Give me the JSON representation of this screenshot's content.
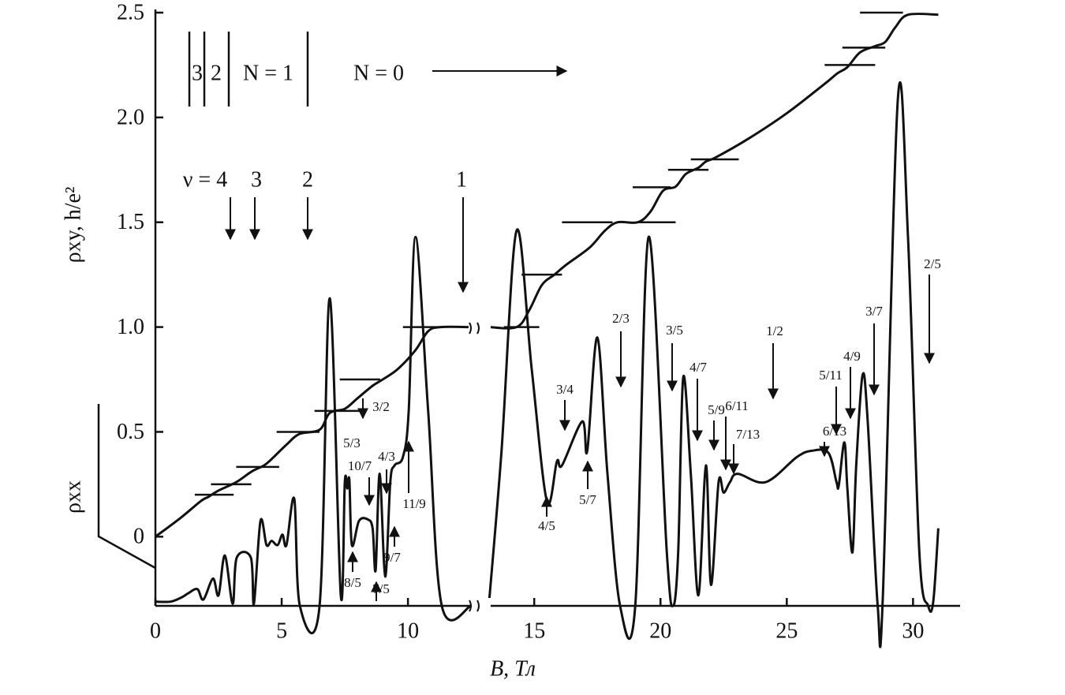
{
  "chart_data": {
    "type": "line",
    "xlabel": "B, Тл",
    "ylabel": "ρxy, h/e²",
    "y2label": "ρxx",
    "xlim": [
      0,
      31.8
    ],
    "xticks": [
      0,
      5,
      10,
      15,
      20,
      25,
      30
    ],
    "ylim": [
      -0.33,
      2.5
    ],
    "yticks": [
      0,
      0.5,
      {
        "value": 1.0,
        "label": "1.0"
      },
      1.5,
      {
        "value": 2.0,
        "label": "2.0"
      },
      2.5
    ],
    "grid": false,
    "series": [
      {
        "color": "#111111",
        "x": [
          0,
          1,
          1.8,
          2.1,
          2.5,
          3.2,
          3.8,
          4.3,
          4.6,
          5.2,
          5.7,
          6.5,
          6.9,
          7.5,
          8,
          8.6,
          9,
          9.6,
          10.3,
          10.8,
          11.3,
          12.4,
          null,
          13.2,
          14.3,
          14.8,
          15.3,
          15.8,
          16.3,
          17.2,
          17.8,
          18.3,
          19.1,
          19.6,
          20.1,
          20.6,
          21,
          21.5,
          21.8,
          22.2,
          23.5,
          25,
          26.5,
          27,
          27.4,
          27.9,
          28.5,
          28.9,
          29.3,
          29.8,
          31
        ],
        "values": [
          0,
          0.09,
          0.17,
          0.19,
          0.22,
          0.26,
          0.31,
          0.34,
          0.37,
          0.44,
          0.49,
          0.51,
          0.59,
          0.61,
          0.66,
          0.72,
          0.75,
          0.8,
          0.89,
          0.98,
          1.0,
          1.0,
          null,
          1.0,
          1.0,
          1.08,
          1.2,
          1.25,
          1.3,
          1.38,
          1.46,
          1.5,
          1.5,
          1.55,
          1.65,
          1.67,
          1.73,
          1.76,
          1.79,
          1.81,
          1.9,
          2.02,
          2.16,
          2.21,
          2.24,
          2.31,
          2.34,
          2.36,
          2.43,
          2.49,
          2.49
        ]
      },
      {
        "color": "#111111",
        "x": [
          0,
          0.6,
          1.03,
          1.3,
          1.66,
          1.9,
          2.28,
          2.5,
          2.75,
          3.06,
          3.22,
          3.78,
          3.9,
          4.16,
          4.4,
          4.6,
          4.84,
          5.03,
          5.19,
          5.5,
          5.72,
          6.5,
          6.9,
          7.34,
          7.5,
          7.6,
          7.68,
          7.78,
          8.06,
          8.4,
          8.6,
          8.72,
          8.88,
          9.1,
          9.3,
          9.47,
          9.8,
          10.03,
          10.3,
          10.8,
          11.34,
          12.5,
          null,
          13.2,
          13.7,
          14.3,
          14.9,
          15.5,
          15.9,
          16.1,
          16.9,
          17.1,
          17.5,
          17.9,
          18.4,
          19.0,
          19.53,
          20.25,
          20.5,
          20.7,
          20.9,
          21.2,
          21.5,
          21.8,
          22.0,
          22.3,
          22.5,
          22.75,
          23.06,
          24.16,
          25.4,
          26.0,
          26.65,
          26.97,
          27.06,
          27.28,
          27.4,
          27.6,
          27.75,
          28.0,
          28.2,
          28.6,
          28.8,
          29.4,
          29.8,
          30.25,
          30.6,
          30.8,
          31.0
        ],
        "values": [
          -0.31,
          -0.31,
          -0.29,
          -0.27,
          -0.25,
          -0.3,
          -0.2,
          -0.28,
          -0.09,
          -0.32,
          -0.1,
          -0.1,
          -0.32,
          0.075,
          -0.04,
          -0.02,
          -0.04,
          0.01,
          -0.04,
          0.18,
          -0.33,
          -0.33,
          1.137,
          -0.28,
          0.26,
          0.23,
          0.27,
          -0.04,
          0.075,
          0.083,
          0.04,
          -0.16,
          0.3,
          -0.19,
          0.26,
          0.34,
          0.38,
          0.6,
          1.43,
          0.6,
          -0.33,
          -0.33,
          null,
          -0.33,
          0.4,
          1.46,
          0.8,
          0.17,
          0.36,
          0.34,
          0.55,
          0.41,
          0.95,
          0.3,
          -0.33,
          -0.33,
          1.43,
          -0.075,
          -0.33,
          -0.075,
          0.76,
          0.3,
          -0.28,
          0.34,
          -0.23,
          0.26,
          0.21,
          0.26,
          0.3,
          0.26,
          0.38,
          0.41,
          0.4,
          0.26,
          0.245,
          0.45,
          0.23,
          -0.075,
          0.34,
          0.77,
          0.56,
          -0.33,
          -0.3,
          2.09,
          1.43,
          -0.075,
          -0.33,
          -0.31,
          0.04
        ]
      }
    ],
    "plateaus": [
      {
        "value": 0.2,
        "x": [
          1.56,
          3.1
        ]
      },
      {
        "value": 0.25,
        "x": [
          2.2,
          3.8
        ]
      },
      {
        "value": 0.333,
        "x": [
          3.2,
          4.9
        ]
      },
      {
        "value": 0.5,
        "x": [
          4.8,
          6.5
        ]
      },
      {
        "value": 0.6,
        "x": [
          6.3,
          8.1
        ]
      },
      {
        "value": 0.75,
        "x": [
          7.3,
          8.9
        ]
      },
      {
        "value": 1.0,
        "x": [
          9.8,
          11.4
        ]
      },
      {
        "value": 1.0,
        "x": [
          13.8,
          15.2
        ]
      },
      {
        "value": 1.25,
        "x": [
          14.5,
          16.1
        ]
      },
      {
        "value": 1.5,
        "x": [
          16.1,
          18.1
        ]
      },
      {
        "value": 1.5,
        "x": [
          19.1,
          20.6
        ]
      },
      {
        "value": 1.667,
        "x": [
          18.9,
          20.4
        ]
      },
      {
        "value": 1.75,
        "x": [
          20.3,
          21.9
        ]
      },
      {
        "value": 1.8,
        "x": [
          21.2,
          23.1
        ]
      },
      {
        "value": 2.25,
        "x": [
          26.5,
          28.5
        ]
      },
      {
        "value": 2.333,
        "x": [
          27.2,
          28.9
        ]
      },
      {
        "value": 2.5,
        "x": [
          27.9,
          29.6
        ]
      }
    ],
    "level_labels": [
      "3",
      "2",
      "N = 1",
      "N = 0"
    ],
    "nu_labels": [
      "ν = 4",
      "3",
      "2",
      "1"
    ],
    "annotations": [
      "3/2",
      "5/3",
      "10/7",
      "4/3",
      "11/9",
      "8/5",
      "9/7",
      "7/5",
      "2/3",
      "3/5",
      "3/4",
      "5/7",
      "4/5",
      "4/7",
      "5/9",
      "6/11",
      "7/13",
      "1/2",
      "6/13",
      "5/11",
      "4/9",
      "3/7",
      "2/5"
    ]
  }
}
